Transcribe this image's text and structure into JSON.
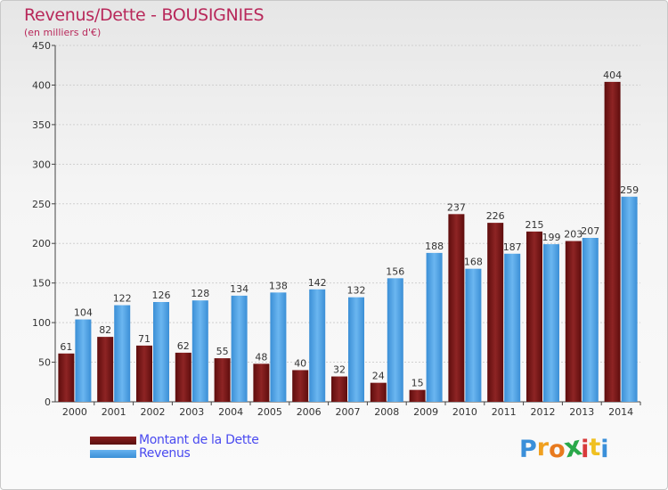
{
  "chart_data": {
    "type": "bar",
    "title": "Revenus/Dette - BOUSIGNIES",
    "subtitle": "(en milliers d'€)",
    "categories": [
      "2000",
      "2001",
      "2002",
      "2003",
      "2004",
      "2005",
      "2006",
      "2007",
      "2008",
      "2009",
      "2010",
      "2011",
      "2012",
      "2013",
      "2014"
    ],
    "series": [
      {
        "name": "Montant de la Dette",
        "color": "#7a1414",
        "values": [
          61,
          82,
          71,
          62,
          55,
          48,
          40,
          32,
          24,
          15,
          237,
          226,
          215,
          203,
          404
        ]
      },
      {
        "name": "Revenus",
        "color": "#4aa0e6",
        "values": [
          104,
          122,
          126,
          128,
          134,
          138,
          142,
          132,
          156,
          188,
          168,
          187,
          199,
          207,
          259
        ]
      }
    ],
    "ylim": [
      0,
      450
    ],
    "yticks": [
      0,
      50,
      100,
      150,
      200,
      250,
      300,
      350,
      400,
      450
    ],
    "grid": true,
    "legend": "bottom-left"
  },
  "legend": {
    "debt_label": "Montant de la Dette",
    "revenue_label": "Revenus"
  },
  "logo": {
    "letters": [
      "P",
      "r",
      "o",
      "x",
      "i",
      "t",
      "i"
    ],
    "colors": [
      "#3a8fd9",
      "#f0a020",
      "#e87a1e",
      "#2aa84a",
      "#d83a3a",
      "#f0c020",
      "#3a8fd9"
    ]
  }
}
